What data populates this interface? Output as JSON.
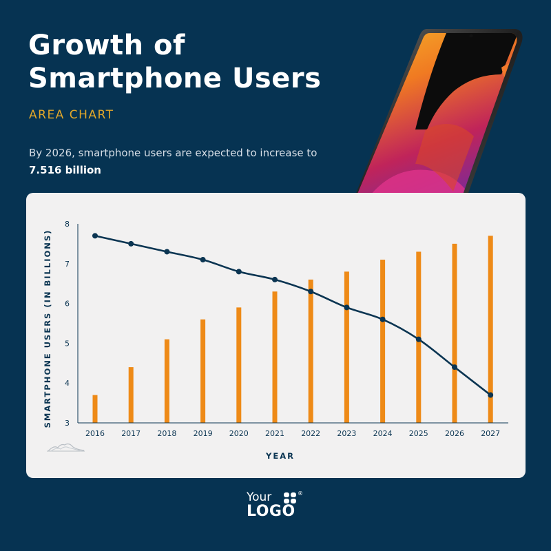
{
  "header": {
    "title_line1": "Growth of",
    "title_line2": "Smartphone Users",
    "subtitle": "AREA CHART",
    "desc_prefix": "By 2026, smartphone users are expected to increase to ",
    "desc_bold": "7.516 billion"
  },
  "logo": {
    "line1": "Your",
    "line2": "LOGO",
    "registered": "®"
  },
  "colors": {
    "background": "#063352",
    "card": "#f2f1f1",
    "bar": "#ee8a17",
    "line": "#0b3552",
    "accent": "#e3a829"
  },
  "icons": [
    "area-chart-icon",
    "logo-mark-icon",
    "smartphone-image"
  ],
  "chart_data": {
    "type": "bar",
    "categories": [
      "2016",
      "2017",
      "2018",
      "2019",
      "2020",
      "2021",
      "2022",
      "2023",
      "2024",
      "2025",
      "2026",
      "2027"
    ],
    "series": [
      {
        "type": "bar",
        "values": [
          3.7,
          4.4,
          5.1,
          5.6,
          5.9,
          6.3,
          6.6,
          6.8,
          7.1,
          7.3,
          7.5,
          7.7
        ]
      },
      {
        "type": "line",
        "values": [
          7.7,
          7.5,
          7.3,
          7.1,
          6.8,
          6.6,
          6.3,
          5.9,
          5.6,
          5.1,
          4.4,
          3.7
        ]
      }
    ],
    "xlabel": "YEAR",
    "ylabel": "SMARTPHONE USERS (IN BILLIONS)",
    "ylim": [
      3,
      8
    ],
    "yticks": [
      3,
      4,
      5,
      6,
      7,
      8
    ],
    "grid": false
  }
}
